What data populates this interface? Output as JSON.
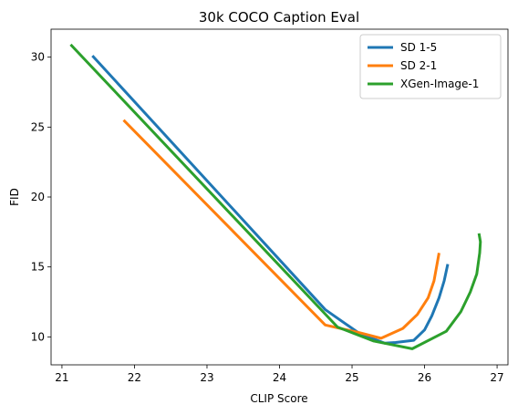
{
  "chart_data": {
    "type": "line",
    "title": "30k COCO Caption Eval",
    "xlabel": "CLIP Score",
    "ylabel": "FID",
    "xlim": [
      20.85,
      27.15
    ],
    "ylim": [
      8.0,
      32.0
    ],
    "xticks": [
      21,
      22,
      23,
      24,
      25,
      26,
      27
    ],
    "yticks": [
      10,
      15,
      20,
      25,
      30
    ],
    "grid": false,
    "legend_position": "top-right",
    "series": [
      {
        "name": "SD 1-5",
        "color": "#1f77b4",
        "points": [
          [
            21.42,
            30.1
          ],
          [
            24.63,
            11.95
          ],
          [
            25.1,
            10.25
          ],
          [
            25.45,
            9.55
          ],
          [
            25.6,
            9.6
          ],
          [
            25.85,
            9.75
          ],
          [
            26.0,
            10.5
          ],
          [
            26.1,
            11.5
          ],
          [
            26.2,
            12.8
          ],
          [
            26.27,
            14.0
          ],
          [
            26.32,
            15.2
          ]
        ]
      },
      {
        "name": "SD 2-1",
        "color": "#ff7f0e",
        "points": [
          [
            21.85,
            25.5
          ],
          [
            24.63,
            10.85
          ],
          [
            25.1,
            10.3
          ],
          [
            25.4,
            9.9
          ],
          [
            25.7,
            10.6
          ],
          [
            25.9,
            11.6
          ],
          [
            26.05,
            12.8
          ],
          [
            26.13,
            14.0
          ],
          [
            26.2,
            16.0
          ]
        ]
      },
      {
        "name": "XGen-Image-1",
        "color": "#2ca02c",
        "points": [
          [
            21.12,
            30.9
          ],
          [
            24.8,
            10.7
          ],
          [
            25.3,
            9.7
          ],
          [
            25.83,
            9.15
          ],
          [
            26.3,
            10.4
          ],
          [
            26.5,
            11.8
          ],
          [
            26.63,
            13.2
          ],
          [
            26.72,
            14.5
          ],
          [
            26.76,
            16.0
          ],
          [
            26.77,
            16.8
          ],
          [
            26.75,
            17.4
          ]
        ]
      }
    ]
  }
}
